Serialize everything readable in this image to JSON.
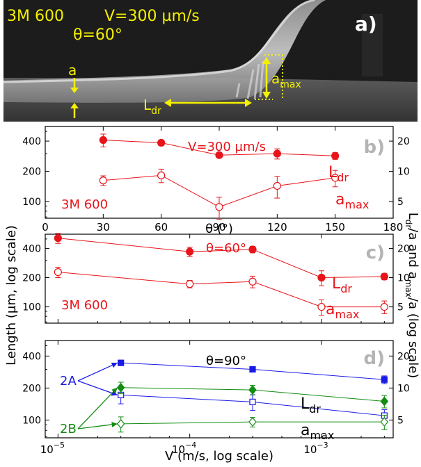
{
  "photo": {
    "panel_letter": "a)",
    "material": "3M 600",
    "velocity": "V=300 µm/s",
    "angle": "θ=60°",
    "label_a": "a",
    "label_amax_base": "a",
    "label_amax_sub": "max",
    "label_ldr_base": "L",
    "label_ldr_sub": "dr"
  },
  "figure": {
    "ylabel_left": "Length (µm, log scale)",
    "ylabel_right_prefix": "L",
    "ylabel_right_sub1": "dr",
    "ylabel_right_mid": "/a and a",
    "ylabel_right_sub2": "max",
    "ylabel_right_suffix": "/a (log scale)"
  },
  "colors": {
    "red": "#e8141a",
    "blue": "#1a1ae6",
    "green": "#128c12",
    "yellow": "#f4f000",
    "panel_letter_gray": "#b4b4b4"
  },
  "chart_data": [
    {
      "type": "scatter",
      "panel": "b)",
      "xlabel": "θ (°)",
      "xlim": [
        0,
        180
      ],
      "xticks": [
        "0",
        "30",
        "60",
        "90",
        "120",
        "150",
        "180"
      ],
      "yscale": "log",
      "ylim": [
        68,
        560
      ],
      "yticks": [
        "100",
        "200",
        "400"
      ],
      "y2ticks": [
        "5",
        "10",
        "20"
      ],
      "annotations": [
        "V=300 µm/s",
        "3M 600"
      ],
      "series": [
        {
          "name": "Ldr",
          "label_base": "L",
          "label_sub": "dr",
          "marker": "filled-circle",
          "color": "#e8141a",
          "x": [
            30,
            60,
            90,
            120,
            150
          ],
          "y": [
            410,
            385,
            290,
            300,
            285
          ],
          "yerr": [
            60,
            25,
            12,
            35,
            22
          ]
        },
        {
          "name": "amax",
          "label_base": "a",
          "label_sub": "max",
          "marker": "open-circle",
          "color": "#e8141a",
          "x": [
            30,
            60,
            90,
            120,
            150
          ],
          "y": [
            162,
            182,
            88,
            143,
            172
          ],
          "yerr": [
            18,
            28,
            22,
            35,
            32
          ]
        }
      ]
    },
    {
      "type": "scatter",
      "panel": "c)",
      "xscale": "log",
      "xlim": [
        8e-06,
        0.0035
      ],
      "yscale": "log",
      "ylim": [
        68,
        560
      ],
      "yticks": [
        "100",
        "200",
        "400"
      ],
      "y2ticks": [
        "5",
        "10",
        "20"
      ],
      "annotations": [
        "θ=60°",
        "3M 600"
      ],
      "series": [
        {
          "name": "Ldr",
          "label_base": "L",
          "label_sub": "dr",
          "marker": "filled-circle",
          "color": "#e8141a",
          "x": [
            1e-05,
            0.0001,
            0.0003,
            0.001,
            0.003
          ],
          "y": [
            510,
            370,
            390,
            200,
            205
          ],
          "yerr": [
            60,
            40,
            30,
            35,
            15
          ]
        },
        {
          "name": "amax",
          "label_base": "a",
          "label_sub": "max",
          "marker": "open-circle",
          "color": "#e8141a",
          "x": [
            1e-05,
            0.0001,
            0.0003,
            0.001,
            0.003
          ],
          "y": [
            228,
            172,
            182,
            100,
            100
          ],
          "yerr": [
            28,
            15,
            25,
            18,
            15
          ]
        }
      ]
    },
    {
      "type": "scatter",
      "panel": "d)",
      "xlabel": "V (m/s, log scale)",
      "xscale": "log",
      "xlim": [
        8e-06,
        0.0035
      ],
      "xticks": [
        "10",
        "10",
        "10"
      ],
      "xtick_exponents": [
        "−5",
        "−4",
        "−3"
      ],
      "yscale": "log",
      "ylim": [
        68,
        560
      ],
      "yticks": [
        "100",
        "200",
        "400"
      ],
      "y2ticks": [
        "5",
        "10",
        "20"
      ],
      "annotations": [
        "θ=90°",
        "2A",
        "2B"
      ],
      "curve_labels": [
        {
          "base": "L",
          "sub": "dr"
        },
        {
          "base": "a",
          "sub": "max"
        }
      ],
      "series": [
        {
          "name": "2A Ldr",
          "marker": "filled-square",
          "color": "#1a1ae6",
          "x": [
            3e-05,
            0.0003,
            0.003
          ],
          "y": [
            345,
            300,
            240
          ],
          "yerr": [
            15,
            15,
            20
          ]
        },
        {
          "name": "2A amax",
          "marker": "open-square",
          "color": "#1a1ae6",
          "x": [
            3e-05,
            0.0003,
            0.003
          ],
          "y": [
            172,
            148,
            110
          ],
          "yerr": [
            30,
            25,
            15
          ]
        },
        {
          "name": "2B Ldr",
          "marker": "filled-diamond",
          "color": "#128c12",
          "x": [
            3e-05,
            0.0003,
            0.003
          ],
          "y": [
            202,
            192,
            150
          ],
          "yerr": [
            25,
            20,
            20
          ]
        },
        {
          "name": "2B amax",
          "marker": "open-diamond",
          "color": "#128c12",
          "x": [
            3e-05,
            0.0003,
            0.003
          ],
          "y": [
            92,
            96,
            96
          ],
          "yerr": [
            15,
            10,
            15
          ]
        }
      ]
    }
  ]
}
